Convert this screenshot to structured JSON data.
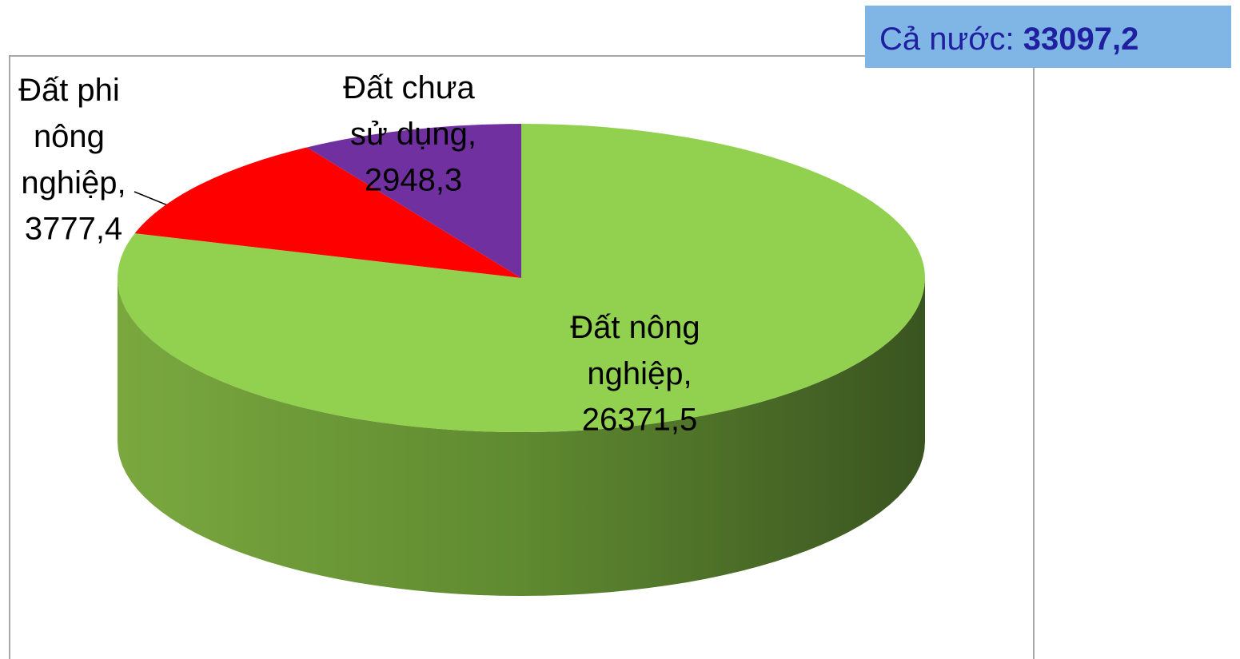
{
  "chart_data": {
    "type": "pie3d",
    "categories": [
      "Đất nông nghiệp,",
      "Đất phi nông nghiệp,",
      "Đất chưa sử dụng,"
    ],
    "values": [
      26371.5,
      3777.4,
      2948.3
    ],
    "value_labels": [
      "26371,5",
      "3777,4",
      "2948,3"
    ],
    "colors": [
      "#92d050",
      "#ff0000",
      "#7030a0"
    ],
    "total_label": "Cả nước:",
    "total": 33097.2,
    "total_value_label": "33097,2"
  }
}
